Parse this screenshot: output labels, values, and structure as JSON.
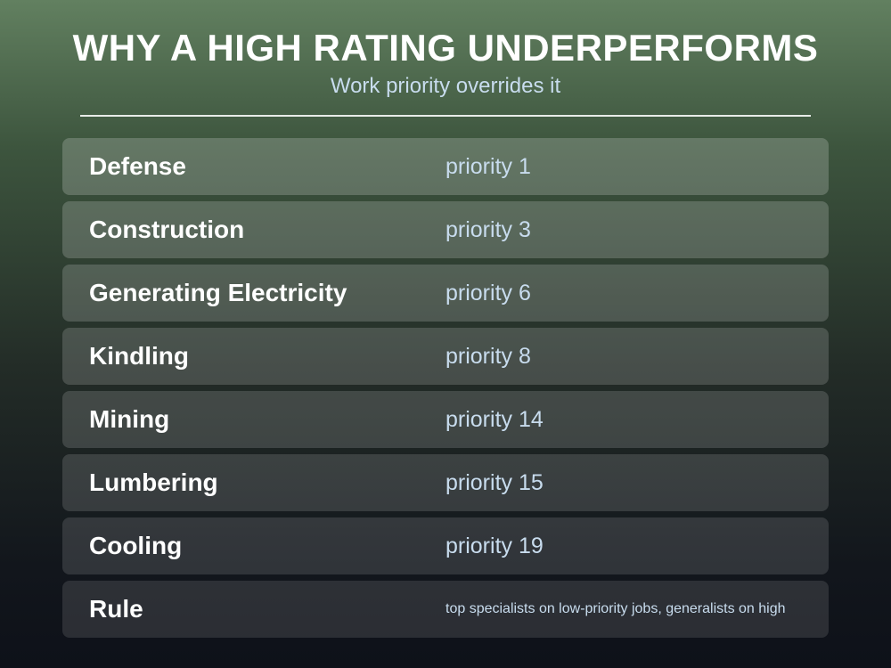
{
  "header": {
    "title": "WHY A HIGH RATING UNDERPERFORMS",
    "subtitle": "Work priority overrides it"
  },
  "rows": [
    {
      "label": "Defense",
      "value": "priority 1"
    },
    {
      "label": "Construction",
      "value": "priority 3"
    },
    {
      "label": "Generating Electricity",
      "value": "priority 6"
    },
    {
      "label": "Kindling",
      "value": "priority 8"
    },
    {
      "label": "Mining",
      "value": "priority 14"
    },
    {
      "label": "Lumbering",
      "value": "priority 15"
    },
    {
      "label": "Cooling",
      "value": "priority 19"
    },
    {
      "label": "Rule",
      "value": "top specialists on low-priority jobs, generalists on high"
    }
  ]
}
